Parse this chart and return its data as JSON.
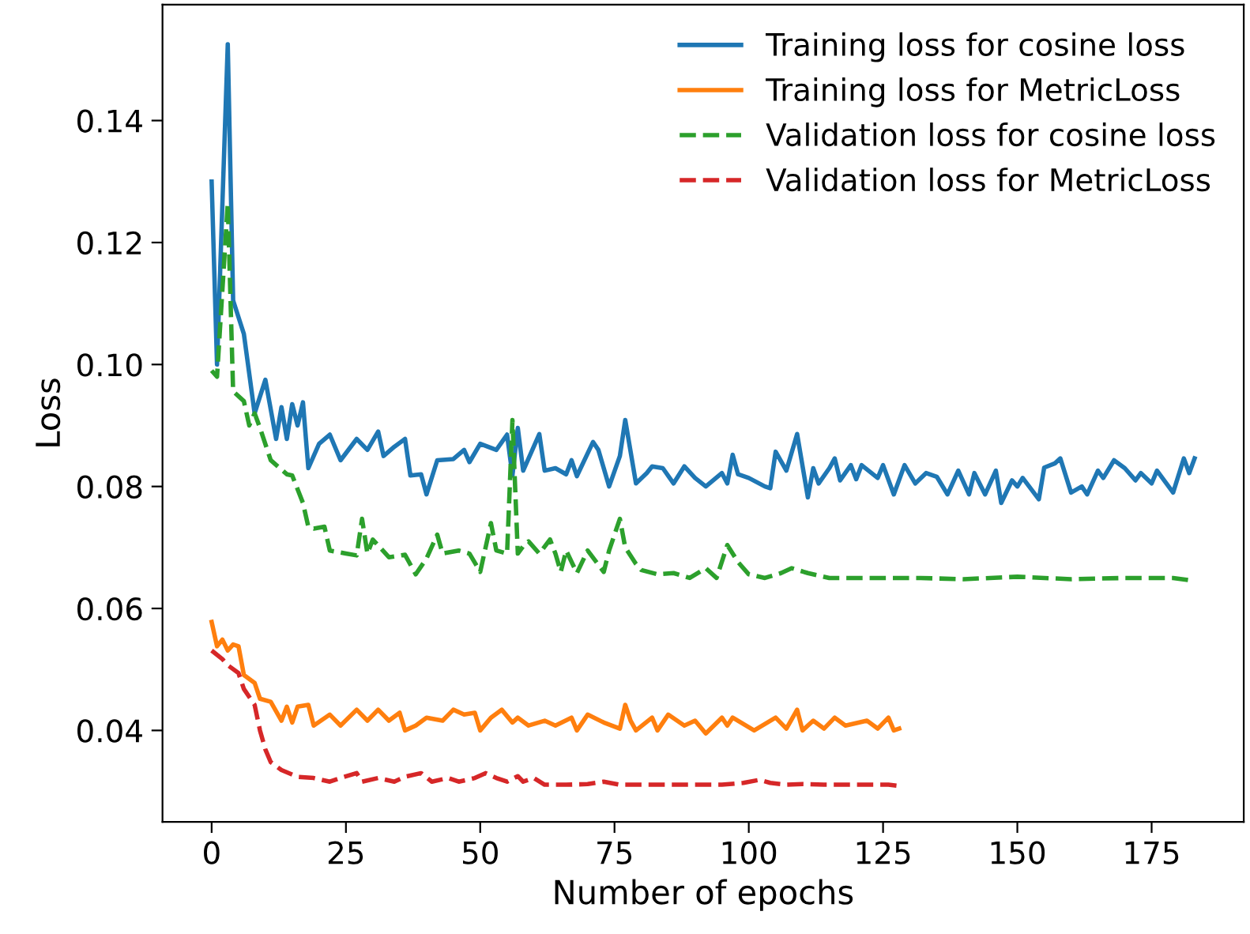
{
  "chart_data": {
    "type": "line",
    "xlabel": "Number of epochs",
    "ylabel": "Loss",
    "xlim": [
      -9.15,
      192.15
    ],
    "ylim": [
      0.025,
      0.159
    ],
    "xticks": [
      0,
      25,
      50,
      75,
      100,
      125,
      150,
      175
    ],
    "yticks": [
      {
        "value": 0.04,
        "label": "0.04"
      },
      {
        "value": 0.06,
        "label": "0.06"
      },
      {
        "value": 0.08,
        "label": "0.08"
      },
      {
        "value": 0.1,
        "label": "0.10"
      },
      {
        "value": 0.12,
        "label": "0.12"
      },
      {
        "value": 0.14,
        "label": "0.14"
      }
    ],
    "grid": false,
    "legend": "top right",
    "marker": "none",
    "series": [
      {
        "name": "Training loss for cosine loss",
        "color": "#1f77b4",
        "line_style": "solid",
        "x": [
          0,
          1,
          3,
          4,
          6,
          8,
          10,
          12,
          13,
          14,
          15,
          16,
          17,
          18,
          20,
          22,
          24,
          27,
          29,
          31,
          32,
          34,
          36,
          37,
          39,
          40,
          42,
          45,
          47,
          48,
          50,
          53,
          55,
          56,
          57,
          58,
          61,
          62,
          64,
          66,
          67,
          68,
          71,
          72,
          74,
          76,
          77,
          79,
          81,
          82,
          84,
          86,
          88,
          90,
          92,
          95,
          96,
          97,
          98,
          100,
          103,
          104,
          105,
          107,
          109,
          111,
          112,
          113,
          115,
          116,
          117,
          119,
          120,
          121,
          124,
          125,
          127,
          129,
          131,
          133,
          135,
          137,
          139,
          141,
          142,
          144,
          146,
          147,
          149,
          150,
          151,
          154,
          155,
          157,
          158,
          160,
          162,
          163,
          165,
          166,
          168,
          170,
          172,
          173,
          175,
          176,
          177,
          179,
          181,
          182,
          183
        ],
        "values": [
          0.13,
          0.1,
          0.1525,
          0.1105,
          0.105,
          0.092,
          0.0975,
          0.0878,
          0.093,
          0.0878,
          0.0935,
          0.09,
          0.0938,
          0.083,
          0.087,
          0.0885,
          0.0843,
          0.0878,
          0.086,
          0.089,
          0.085,
          0.0865,
          0.0878,
          0.0818,
          0.082,
          0.0787,
          0.0843,
          0.0845,
          0.086,
          0.084,
          0.087,
          0.086,
          0.0885,
          0.0818,
          0.0896,
          0.0826,
          0.0886,
          0.0826,
          0.083,
          0.082,
          0.0843,
          0.0817,
          0.0873,
          0.086,
          0.08,
          0.085,
          0.0909,
          0.0805,
          0.0822,
          0.0833,
          0.083,
          0.0805,
          0.0833,
          0.0814,
          0.08,
          0.0822,
          0.0805,
          0.0852,
          0.082,
          0.0814,
          0.08,
          0.0797,
          0.0857,
          0.0826,
          0.0886,
          0.0782,
          0.083,
          0.0805,
          0.083,
          0.0846,
          0.081,
          0.0835,
          0.0812,
          0.0835,
          0.0814,
          0.0835,
          0.0787,
          0.0835,
          0.0805,
          0.0822,
          0.0816,
          0.0787,
          0.0826,
          0.0787,
          0.0822,
          0.0787,
          0.0826,
          0.0773,
          0.081,
          0.08,
          0.0814,
          0.0779,
          0.0831,
          0.0838,
          0.0846,
          0.079,
          0.08,
          0.0787,
          0.0826,
          0.0814,
          0.0843,
          0.083,
          0.081,
          0.0822,
          0.0805,
          0.0826,
          0.0814,
          0.079,
          0.0846,
          0.0822,
          0.0846
        ]
      },
      {
        "name": "Training loss for MetricLoss",
        "color": "#ff7f0e",
        "line_style": "solid",
        "x": [
          0,
          1,
          2,
          3,
          4,
          5,
          6,
          8,
          9,
          11,
          13,
          14,
          15,
          16,
          18,
          19,
          22,
          24,
          27,
          29,
          31,
          33,
          35,
          36,
          38,
          40,
          43,
          45,
          47,
          49,
          50,
          52,
          54,
          56,
          57,
          59,
          62,
          64,
          67,
          68,
          70,
          73,
          76,
          77,
          78,
          79,
          82,
          83,
          85,
          88,
          90,
          92,
          95,
          96,
          97,
          101,
          105,
          107,
          109,
          110,
          112,
          114,
          116,
          118,
          122,
          124,
          126,
          127,
          128
        ],
        "values": [
          0.0578,
          0.0538,
          0.0549,
          0.0531,
          0.0541,
          0.0538,
          0.0491,
          0.0478,
          0.0452,
          0.0447,
          0.0416,
          0.0439,
          0.0413,
          0.0439,
          0.0442,
          0.0408,
          0.0426,
          0.0408,
          0.0434,
          0.0416,
          0.0434,
          0.0416,
          0.0429,
          0.04,
          0.0408,
          0.0421,
          0.0416,
          0.0434,
          0.0426,
          0.0429,
          0.04,
          0.0421,
          0.0434,
          0.0413,
          0.0421,
          0.0408,
          0.0416,
          0.0408,
          0.0421,
          0.04,
          0.0426,
          0.0413,
          0.0403,
          0.0442,
          0.0416,
          0.04,
          0.0421,
          0.04,
          0.0426,
          0.0408,
          0.0416,
          0.0395,
          0.0421,
          0.0408,
          0.0421,
          0.04,
          0.0421,
          0.0403,
          0.0434,
          0.04,
          0.0416,
          0.0403,
          0.0421,
          0.0408,
          0.0416,
          0.0403,
          0.0421,
          0.04,
          0.0403
        ]
      },
      {
        "name": "Validation loss for cosine loss",
        "color": "#2ca02c",
        "line_style": "dashed",
        "x": [
          0,
          1,
          3,
          4,
          6,
          7,
          8,
          9,
          11,
          14,
          15,
          17,
          18,
          19,
          21,
          22,
          25,
          27,
          28,
          29,
          30,
          33,
          36,
          38,
          40,
          42,
          43,
          46,
          48,
          50,
          52,
          53,
          55,
          56,
          57,
          58,
          59,
          61,
          63,
          64,
          65,
          66,
          68,
          70,
          73,
          74,
          76,
          77,
          79,
          80,
          83,
          86,
          89,
          92,
          94,
          96,
          98,
          100,
          103,
          106,
          108,
          111,
          115,
          120,
          126,
          132,
          140,
          150,
          160,
          170,
          179,
          183
        ],
        "values": [
          0.099,
          0.098,
          0.1264,
          0.0956,
          0.094,
          0.09,
          0.092,
          0.0896,
          0.0843,
          0.082,
          0.0818,
          0.0773,
          0.0734,
          0.0731,
          0.0734,
          0.0695,
          0.069,
          0.0687,
          0.0747,
          0.069,
          0.0713,
          0.0684,
          0.0688,
          0.0656,
          0.0682,
          0.0721,
          0.069,
          0.0695,
          0.069,
          0.066,
          0.074,
          0.0695,
          0.069,
          0.0909,
          0.069,
          0.0702,
          0.071,
          0.069,
          0.0713,
          0.069,
          0.066,
          0.0695,
          0.0658,
          0.0695,
          0.066,
          0.0695,
          0.0747,
          0.07,
          0.0673,
          0.0663,
          0.0656,
          0.0658,
          0.065,
          0.0666,
          0.065,
          0.0704,
          0.0676,
          0.0656,
          0.065,
          0.0658,
          0.0666,
          0.0658,
          0.065,
          0.065,
          0.065,
          0.065,
          0.0648,
          0.0652,
          0.0648,
          0.065,
          0.065,
          0.0645
        ]
      },
      {
        "name": "Validation loss for MetricLoss",
        "color": "#d62728",
        "line_style": "dashed",
        "x": [
          0,
          2,
          3,
          5,
          6,
          8,
          9,
          10,
          11,
          13,
          16,
          19,
          22,
          24,
          27,
          28,
          31,
          34,
          36,
          39,
          41,
          44,
          46,
          49,
          51,
          53,
          55,
          57,
          58,
          60,
          62,
          66,
          70,
          73,
          76,
          80,
          84,
          88,
          91,
          95,
          99,
          102,
          104,
          107,
          110,
          114,
          118,
          122,
          126,
          128
        ],
        "values": [
          0.0531,
          0.0517,
          0.0507,
          0.0494,
          0.0468,
          0.0442,
          0.04,
          0.0369,
          0.0348,
          0.0335,
          0.0324,
          0.0322,
          0.0316,
          0.0322,
          0.033,
          0.0316,
          0.0322,
          0.0316,
          0.0324,
          0.033,
          0.0316,
          0.0322,
          0.0316,
          0.0322,
          0.033,
          0.0322,
          0.0316,
          0.0325,
          0.0316,
          0.0322,
          0.0311,
          0.0311,
          0.0312,
          0.0316,
          0.0311,
          0.0311,
          0.0311,
          0.0311,
          0.0311,
          0.0311,
          0.0314,
          0.0319,
          0.0314,
          0.0311,
          0.0312,
          0.0311,
          0.0311,
          0.0311,
          0.0311,
          0.0309
        ]
      }
    ]
  }
}
